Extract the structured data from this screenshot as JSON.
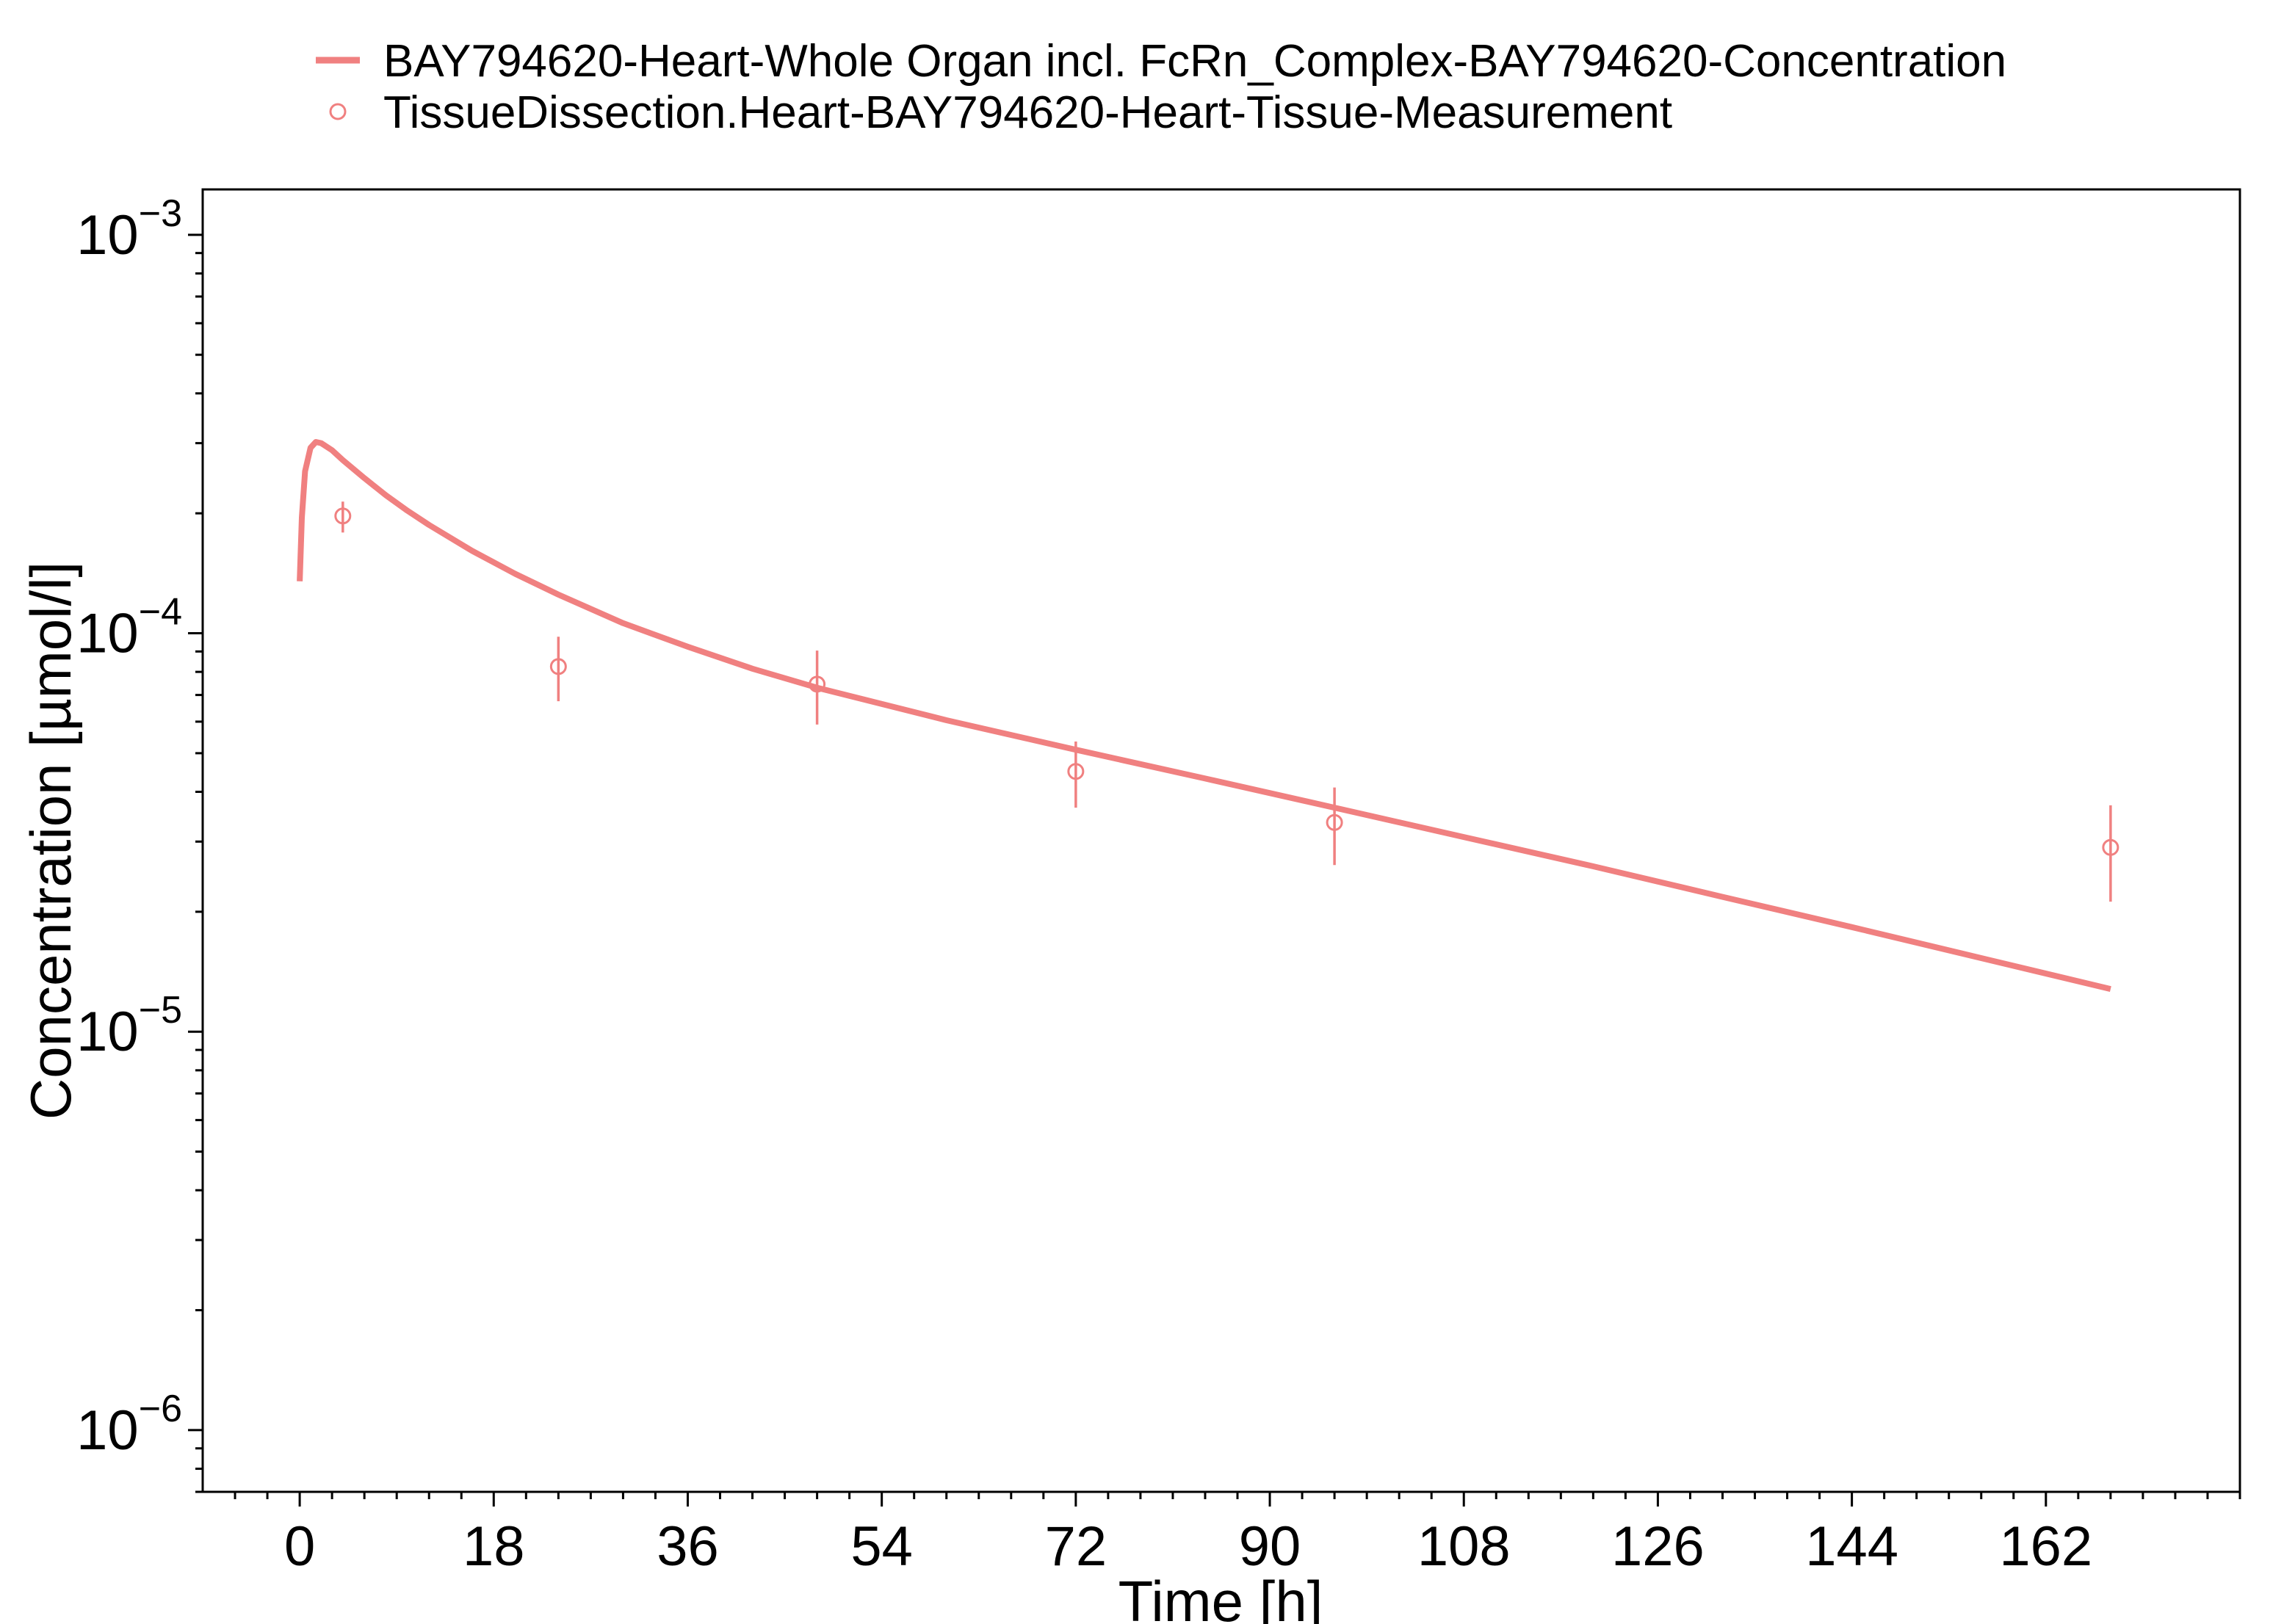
{
  "chart_data": {
    "type": "line",
    "title": "",
    "xlabel": "Time [h]",
    "ylabel": "Concentration [µmol/l]",
    "xlim": [
      -9,
      180
    ],
    "ylim": [
      7e-07,
      0.0013
    ],
    "y_scale": "log",
    "grid": false,
    "legend_position": "top",
    "x_ticks": [
      0,
      18,
      36,
      54,
      72,
      90,
      108,
      126,
      144,
      162
    ],
    "x_tick_labels": [
      "0",
      "18",
      "36",
      "54",
      "72",
      "90",
      "108",
      "126",
      "144",
      "162"
    ],
    "y_ticks": [
      {
        "value": 0.001,
        "base": "10",
        "exponent": "−3"
      },
      {
        "value": 0.0001,
        "base": "10",
        "exponent": "−4"
      },
      {
        "value": 1e-05,
        "base": "10",
        "exponent": "−5"
      },
      {
        "value": 1e-06,
        "base": "10",
        "exponent": "−6"
      }
    ],
    "series": [
      {
        "name": "BAY794620-Heart-Whole Organ incl. FcRn_Complex-BAY794620-Concentration",
        "kind": "line",
        "color": "#F08080",
        "x": [
          0,
          0.2,
          0.5,
          1,
          1.5,
          2,
          3,
          4,
          6,
          8,
          10,
          12,
          16,
          20,
          24,
          30,
          36,
          42,
          48,
          60,
          72,
          84,
          96,
          108,
          120,
          132,
          144,
          156,
          168
        ],
        "y": [
          0.000135,
          0.000195,
          0.000255,
          0.000292,
          0.000302,
          0.0003,
          0.000288,
          0.000272,
          0.000245,
          0.000222,
          0.000203,
          0.000187,
          0.000161,
          0.000141,
          0.000125,
          0.000106,
          9.25e-05,
          8.15e-05,
          7.3e-05,
          6.05e-05,
          5.1e-05,
          4.32e-05,
          3.65e-05,
          3.08e-05,
          2.6e-05,
          2.18e-05,
          1.83e-05,
          1.53e-05,
          1.28e-05
        ]
      },
      {
        "name": "TissueDissection.Heart-BAY794620-Heart-Tissue-Measurement",
        "kind": "scatter",
        "color": "#F08080",
        "x": [
          4,
          24,
          48,
          72,
          96,
          168
        ],
        "y": [
          0.000197,
          8.25e-05,
          7.45e-05,
          4.5e-05,
          3.35e-05,
          2.9e-05
        ],
        "y_err_low": [
          0.000179,
          6.75e-05,
          5.9e-05,
          3.65e-05,
          2.62e-05,
          2.12e-05
        ],
        "y_err_high": [
          0.000214,
          9.8e-05,
          9.05e-05,
          5.35e-05,
          4.1e-05,
          3.7e-05
        ]
      }
    ]
  }
}
